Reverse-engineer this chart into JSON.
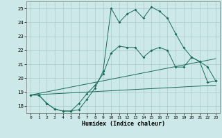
{
  "title": "",
  "xlabel": "Humidex (Indice chaleur)",
  "ylabel": "",
  "xlim": [
    -0.5,
    23.5
  ],
  "ylim": [
    17.5,
    25.5
  ],
  "xticks": [
    0,
    1,
    2,
    3,
    4,
    5,
    6,
    7,
    8,
    9,
    10,
    11,
    12,
    13,
    14,
    15,
    16,
    17,
    18,
    19,
    20,
    21,
    22,
    23
  ],
  "yticks": [
    18,
    19,
    20,
    21,
    22,
    23,
    24,
    25
  ],
  "background_color": "#cce8e8",
  "grid_color": "#aacccc",
  "line_color": "#1a6b5a",
  "curve1_x": [
    0,
    1,
    2,
    3,
    4,
    5,
    6,
    7,
    8,
    9,
    10,
    11,
    12,
    13,
    14,
    15,
    16,
    17,
    18,
    19,
    20,
    21,
    22,
    23
  ],
  "curve1_y": [
    18.8,
    18.8,
    18.2,
    17.8,
    17.65,
    17.65,
    17.75,
    18.5,
    19.3,
    20.5,
    25.0,
    24.0,
    24.6,
    24.9,
    24.3,
    25.1,
    24.8,
    24.3,
    23.2,
    22.2,
    21.5,
    21.2,
    19.7,
    19.8
  ],
  "curve2_x": [
    0,
    1,
    2,
    3,
    4,
    5,
    6,
    7,
    8,
    9,
    10,
    11,
    12,
    13,
    14,
    15,
    16,
    17,
    18,
    19,
    20,
    21,
    22,
    23
  ],
  "curve2_y": [
    18.8,
    18.8,
    18.2,
    17.8,
    17.65,
    17.65,
    18.2,
    18.9,
    19.5,
    20.3,
    21.8,
    22.3,
    22.2,
    22.2,
    21.5,
    22.0,
    22.2,
    22.0,
    20.8,
    20.8,
    21.5,
    21.2,
    20.8,
    19.8
  ],
  "line3_y0": 18.8,
  "line3_y1": 19.5,
  "line4_y0": 18.8,
  "line4_y1": 21.4
}
